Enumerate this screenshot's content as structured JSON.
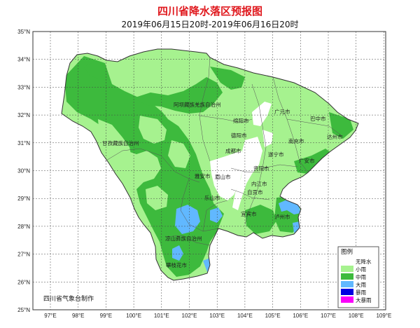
{
  "title": "四川省降水落区预报图",
  "subtitle": "2019年06月15日20时-2019年06月16日20时",
  "lat_labels": [
    "35°N",
    "34°N",
    "33°N",
    "32°N",
    "31°N",
    "30°N",
    "29°N",
    "28°N",
    "27°N",
    "26°N",
    "25°N"
  ],
  "lon_labels": [
    "97°E",
    "98°E",
    "99°E",
    "100°E",
    "101°E",
    "102°E",
    "103°E",
    "104°E",
    "105°E",
    "106°E",
    "107°E",
    "108°E",
    "109°E"
  ],
  "cities": [
    "阿坝藏族羌族自治州",
    "甘孜藏族自治州",
    "广元市",
    "巴中市",
    "绵阳市",
    "德阳市",
    "南充市",
    "达州市",
    "成都市",
    "遂宁市",
    "广安市",
    "资阳市",
    "雅安市",
    "眉山市",
    "内江市",
    "乐山市",
    "自贡市",
    "宜宾市",
    "泸州市",
    "凉山彝族自治州",
    "攀枝花市"
  ],
  "legend": {
    "title": "图例",
    "items": [
      {
        "label": "无降水",
        "color": "#ffffff"
      },
      {
        "label": "小雨",
        "color": "#a6f28f"
      },
      {
        "label": "中雨",
        "color": "#3dba3d"
      },
      {
        "label": "大雨",
        "color": "#61b8ff"
      },
      {
        "label": "暴雨",
        "color": "#0000e1"
      },
      {
        "label": "大暴雨",
        "color": "#fa00fa"
      }
    ]
  },
  "credit": "四川省气象台制作",
  "colors": {
    "light_rain": "#a6f28f",
    "moderate_rain": "#3dba3d",
    "heavy_rain": "#61b8ff",
    "no_rain": "#ffffff",
    "boundary": "#333333",
    "grid": "#444444"
  }
}
